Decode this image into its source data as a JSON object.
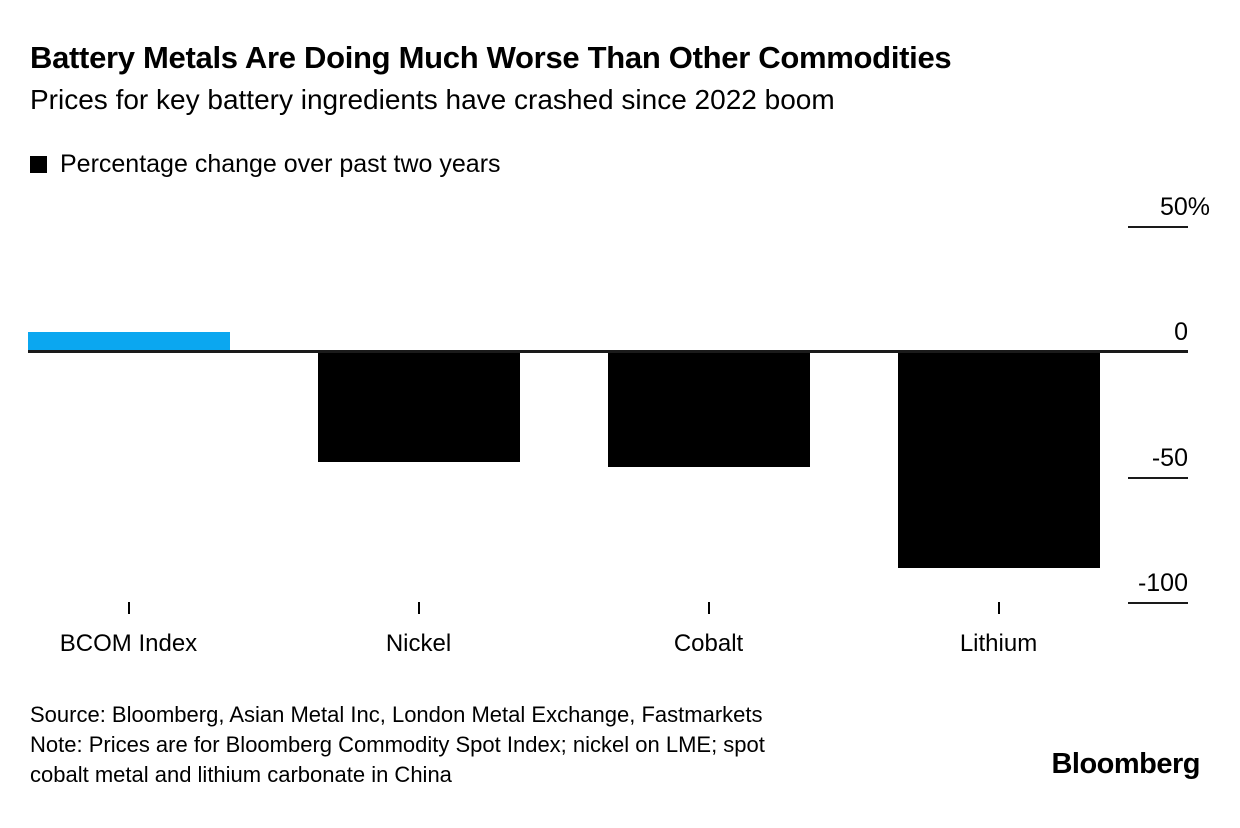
{
  "header": {
    "title": "Battery Metals Are Doing Much Worse Than Other Commodities",
    "subtitle": "Prices for key battery ingredients have crashed since 2022 boom"
  },
  "legend": {
    "swatch_color": "#000000",
    "label": "Percentage change over past two years"
  },
  "chart_data": {
    "type": "bar",
    "title": "Battery Metals Are Doing Much Worse Than Other Commodities",
    "subtitle": "Prices for key battery ingredients have crashed since 2022 boom",
    "series_name": "Percentage change over past two years",
    "categories": [
      "BCOM Index",
      "Nickel",
      "Cobalt",
      "Lithium"
    ],
    "values": [
      8,
      -44,
      -46,
      -86
    ],
    "unit": "%",
    "ylim": [
      -100,
      50
    ],
    "yticks": [
      50,
      0,
      -50,
      -100
    ],
    "ytick_labels": [
      "50%",
      "0",
      "-50",
      "-100"
    ],
    "bar_colors": [
      "#0ba7f0",
      "#000000",
      "#000000",
      "#000000"
    ],
    "baseline": 0,
    "grid": "right-tick-underlines-only",
    "legend_position": "top-left",
    "value_axis_side": "right"
  },
  "footer": {
    "source": "Source: Bloomberg, Asian Metal Inc, London Metal Exchange, Fastmarkets",
    "note_line1": "Note: Prices are for Bloomberg Commodity Spot Index; nickel on LME; spot",
    "note_line2": "cobalt metal and lithium carbonate in China",
    "brand": "Bloomberg"
  },
  "colors": {
    "accent_blue": "#0ba7f0",
    "bar_black": "#000000",
    "axis_line": "#1a1a1a",
    "background": "#ffffff",
    "text": "#000000"
  }
}
